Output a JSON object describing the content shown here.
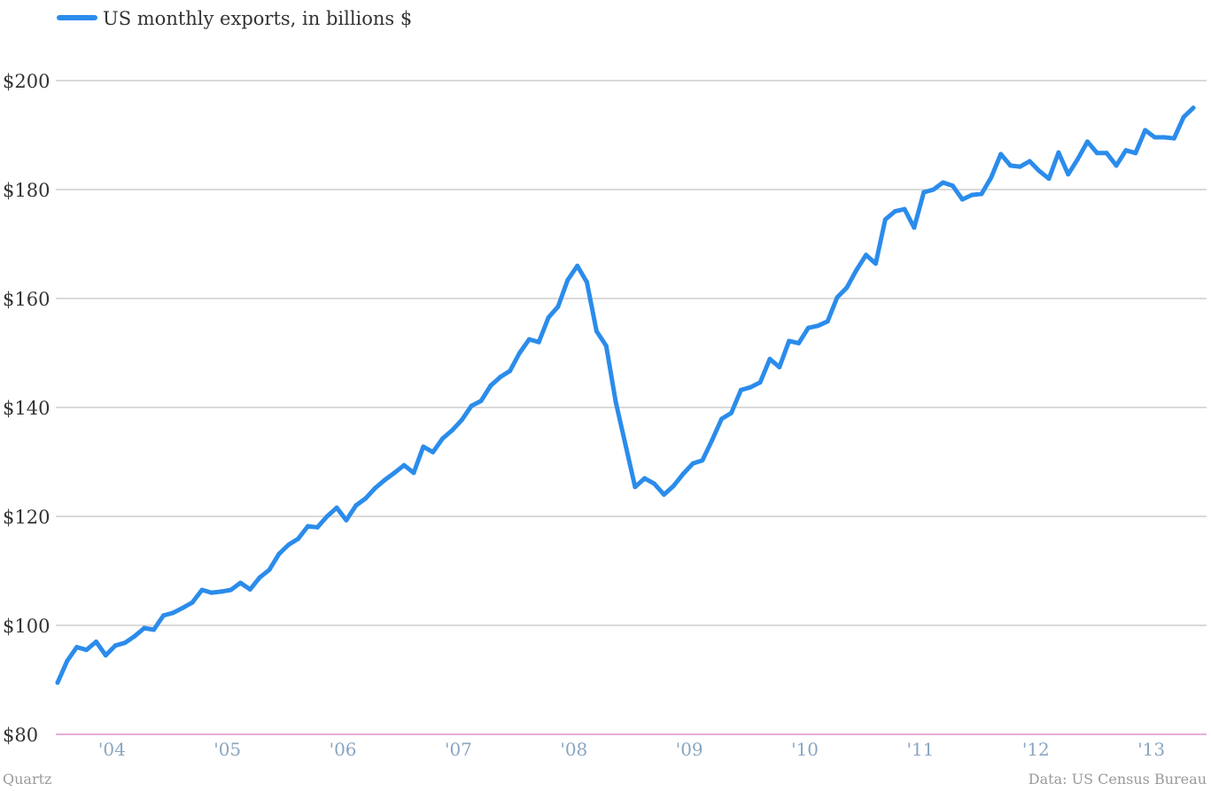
{
  "credits": {
    "source_left": "Quartz",
    "source_right": "Data: US Census Bureau"
  },
  "colors": {
    "line": "#2b8ceb",
    "baseline": "#d65db8",
    "xtick": "#8aa6c1"
  },
  "chart_data": {
    "type": "line",
    "title": "",
    "xlabel": "",
    "ylabel": "",
    "ylim": [
      80,
      200
    ],
    "xlim": [
      "2003-08",
      "2013-06"
    ],
    "y_ticks": [
      80,
      100,
      120,
      140,
      160,
      180,
      200
    ],
    "y_tick_labels": [
      "$80",
      "$100",
      "$120",
      "$140",
      "$160",
      "$180",
      "$200"
    ],
    "x_tick_labels": [
      "'04",
      "'05",
      "'06",
      "'07",
      "'08",
      "'09",
      "'10",
      "'11",
      "'12",
      "'13"
    ],
    "grid": true,
    "legend_position": "top-left",
    "x": [
      "2003-08",
      "2003-09",
      "2003-10",
      "2003-11",
      "2003-12",
      "2004-01",
      "2004-02",
      "2004-03",
      "2004-04",
      "2004-05",
      "2004-06",
      "2004-07",
      "2004-08",
      "2004-09",
      "2004-10",
      "2004-11",
      "2004-12",
      "2005-01",
      "2005-02",
      "2005-03",
      "2005-04",
      "2005-05",
      "2005-06",
      "2005-07",
      "2005-08",
      "2005-09",
      "2005-10",
      "2005-11",
      "2005-12",
      "2006-01",
      "2006-02",
      "2006-03",
      "2006-04",
      "2006-05",
      "2006-06",
      "2006-07",
      "2006-08",
      "2006-09",
      "2006-10",
      "2006-11",
      "2006-12",
      "2007-01",
      "2007-02",
      "2007-03",
      "2007-04",
      "2007-05",
      "2007-06",
      "2007-07",
      "2007-08",
      "2007-09",
      "2007-10",
      "2007-11",
      "2007-12",
      "2008-01",
      "2008-02",
      "2008-03",
      "2008-04",
      "2008-05",
      "2008-06",
      "2008-07",
      "2008-08",
      "2008-09",
      "2008-10",
      "2008-11",
      "2008-12",
      "2009-01",
      "2009-02",
      "2009-03",
      "2009-04",
      "2009-05",
      "2009-06",
      "2009-07",
      "2009-08",
      "2009-09",
      "2009-10",
      "2009-11",
      "2009-12",
      "2010-01",
      "2010-02",
      "2010-03",
      "2010-04",
      "2010-05",
      "2010-06",
      "2010-07",
      "2010-08",
      "2010-09",
      "2010-10",
      "2010-11",
      "2010-12",
      "2011-01",
      "2011-02",
      "2011-03",
      "2011-04",
      "2011-05",
      "2011-06",
      "2011-07",
      "2011-08",
      "2011-09",
      "2011-10",
      "2011-11",
      "2011-12",
      "2012-01",
      "2012-02",
      "2012-03",
      "2012-04",
      "2012-05",
      "2012-06",
      "2012-07",
      "2012-08",
      "2012-09",
      "2012-10",
      "2012-11",
      "2012-12",
      "2013-01",
      "2013-02",
      "2013-03",
      "2013-04",
      "2013-05",
      "2013-06"
    ],
    "series": [
      {
        "name": "US monthly exports, in billions $",
        "values": [
          89.5,
          93.5,
          96.0,
          95.5,
          97.0,
          94.5,
          96.3,
          96.8,
          98.0,
          99.5,
          99.2,
          101.8,
          102.3,
          103.2,
          104.2,
          106.5,
          106.0,
          106.2,
          106.5,
          107.8,
          106.6,
          108.8,
          110.2,
          113.1,
          114.8,
          115.9,
          118.2,
          118.0,
          120.0,
          121.6,
          119.3,
          122.0,
          123.3,
          125.2,
          126.7,
          128.0,
          129.4,
          128.0,
          132.8,
          131.8,
          134.3,
          135.8,
          137.7,
          140.3,
          141.2,
          144.0,
          145.6,
          146.7,
          150.0,
          152.5,
          152.0,
          156.5,
          158.5,
          163.4,
          166.0,
          163.0,
          154.0,
          151.3,
          141.0,
          133.2,
          125.4,
          127.0,
          126.0,
          124.0,
          125.6,
          127.8,
          129.7,
          130.3,
          134.0,
          137.9,
          139.0,
          143.2,
          143.7,
          144.6,
          148.9,
          147.4,
          152.2,
          151.8,
          154.6,
          155.0,
          155.8,
          160.2,
          162.0,
          165.2,
          168.0,
          166.4,
          174.5,
          176.0,
          176.4,
          173.0,
          179.5,
          180.0,
          181.3,
          180.7,
          178.2,
          179.0,
          179.2,
          182.2,
          186.5,
          184.4,
          184.2,
          185.2,
          183.4,
          182.0,
          186.8,
          182.8,
          185.6,
          188.8,
          186.7,
          186.7,
          184.4,
          187.2,
          186.7,
          190.9,
          189.6,
          189.6,
          189.4,
          193.3,
          195.0
        ]
      }
    ]
  }
}
